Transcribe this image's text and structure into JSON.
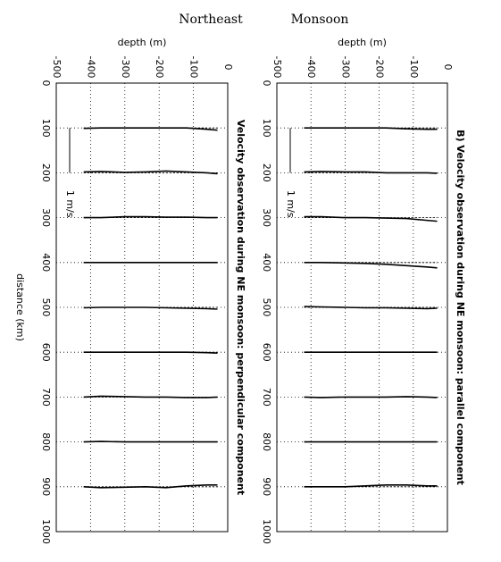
{
  "figure_title": {
    "left": "Northeast",
    "right": "Monsoon"
  },
  "chart_data": [
    {
      "type": "profile",
      "title": "Velocity observation during NE monsoon: perpendicular component",
      "xlabel": "depth (m)",
      "ylabel": "distance (km)",
      "depth_lim": [
        -500,
        0
      ],
      "depth_ticks": [
        -500,
        -400,
        -300,
        -200,
        -100,
        0
      ],
      "distance_lim": [
        0,
        1000
      ],
      "distance_ticks": [
        0,
        100,
        200,
        300,
        400,
        500,
        600,
        700,
        800,
        900,
        1000
      ],
      "grid": true,
      "color": "#000000",
      "scale_label": "1 m/s",
      "scale_km_per_unit": 100,
      "depths": [
        -420,
        -370,
        -300,
        -240,
        -180,
        -120,
        -60,
        -30
      ],
      "stations": [
        {
          "distance": 100,
          "u": [
            0.01,
            0,
            0,
            0,
            0,
            0,
            0.03,
            0.05
          ]
        },
        {
          "distance": 200,
          "u": [
            -0.02,
            -0.03,
            -0.01,
            -0.02,
            -0.04,
            -0.02,
            0,
            0.02
          ]
        },
        {
          "distance": 300,
          "u": [
            0,
            0,
            -0.02,
            -0.02,
            -0.01,
            -0.01,
            0,
            0
          ]
        },
        {
          "distance": 400,
          "u": [
            0,
            0,
            0,
            0,
            0,
            0,
            0,
            0
          ]
        },
        {
          "distance": 500,
          "u": [
            0.01,
            0,
            0,
            0,
            0.01,
            0.02,
            0.03,
            0.04
          ]
        },
        {
          "distance": 600,
          "u": [
            0,
            0,
            0,
            0,
            0,
            0,
            0.01,
            0.02
          ]
        },
        {
          "distance": 700,
          "u": [
            0,
            -0.02,
            -0.01,
            0,
            0,
            0.01,
            0.01,
            0
          ]
        },
        {
          "distance": 800,
          "u": [
            0,
            -0.01,
            0,
            0,
            0,
            0,
            0,
            0
          ]
        },
        {
          "distance": 900,
          "u": [
            0,
            0.02,
            0.01,
            0,
            0.02,
            -0.02,
            -0.04,
            -0.04
          ]
        }
      ]
    },
    {
      "type": "profile",
      "title": "B) Velocity observation during NE monsoon: parallel component",
      "xlabel": "depth (m)",
      "depth_lim": [
        -500,
        0
      ],
      "depth_ticks": [
        -500,
        -400,
        -300,
        -200,
        -100,
        0
      ],
      "distance_lim": [
        0,
        1000
      ],
      "distance_ticks": [
        0,
        100,
        200,
        300,
        400,
        500,
        600,
        700,
        800,
        900,
        1000
      ],
      "grid": true,
      "color": "#000000",
      "scale_label": "1 m/s",
      "scale_km_per_unit": 100,
      "depths": [
        -420,
        -370,
        -300,
        -240,
        -180,
        -120,
        -60,
        -30
      ],
      "stations": [
        {
          "distance": 100,
          "u": [
            0,
            0,
            0,
            0,
            0,
            0.02,
            0.03,
            0.03
          ]
        },
        {
          "distance": 200,
          "u": [
            -0.02,
            -0.03,
            -0.02,
            -0.02,
            0,
            0,
            0,
            0.01
          ]
        },
        {
          "distance": 300,
          "u": [
            -0.02,
            -0.02,
            0,
            0,
            0.01,
            0.02,
            0.06,
            0.08
          ]
        },
        {
          "distance": 400,
          "u": [
            0,
            0,
            0.01,
            0.02,
            0.04,
            0.07,
            0.1,
            0.12
          ]
        },
        {
          "distance": 500,
          "u": [
            -0.02,
            -0.01,
            0,
            0.01,
            0.01,
            0.02,
            0.03,
            0.02
          ]
        },
        {
          "distance": 600,
          "u": [
            0,
            0,
            0,
            0,
            0,
            0,
            0,
            0
          ]
        },
        {
          "distance": 700,
          "u": [
            0,
            0.01,
            0,
            0,
            0,
            -0.01,
            0,
            0.01
          ]
        },
        {
          "distance": 800,
          "u": [
            0,
            0,
            0,
            0,
            0,
            0,
            0,
            0
          ]
        },
        {
          "distance": 900,
          "u": [
            0,
            0,
            0,
            -0.02,
            -0.04,
            -0.04,
            -0.02,
            -0.02
          ]
        }
      ]
    }
  ]
}
